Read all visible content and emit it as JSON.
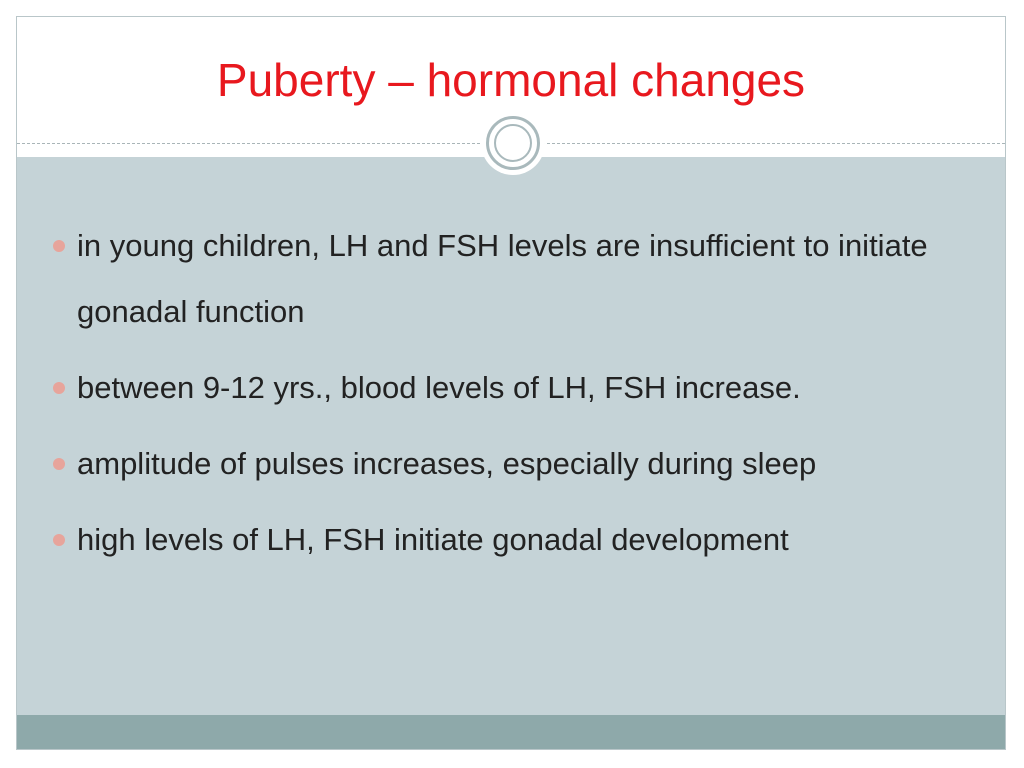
{
  "slide": {
    "title": "Puberty – hormonal changes",
    "bullets": [
      "in young children, LH and FSH levels are insufficient to initiate gonadal function",
      "between 9-12 yrs., blood levels of LH, FSH increase.",
      "amplitude of pulses increases, especially during sleep",
      "high levels of LH, FSH initiate gonadal development"
    ]
  },
  "colors": {
    "title": "#e8181e",
    "content_background": "#c5d3d7",
    "footer_band": "#8ea9aa",
    "bullet_marker": "#e7a49b",
    "ornament_ring": "#a9b9bc"
  },
  "icons": {
    "bullet": "bullet-dot-icon",
    "ornament": "double-ring-ornament-icon"
  }
}
